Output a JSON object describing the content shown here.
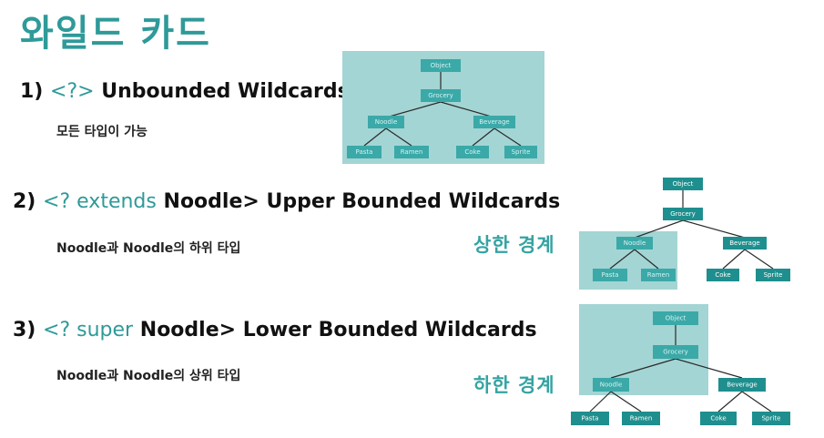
{
  "page": {
    "title": "와일드 카드"
  },
  "sections": [
    {
      "number": "1)",
      "type_param": "<?>",
      "rest": "Unbounded Wildcards",
      "description": "모든 타입이 가능"
    },
    {
      "number": "2)",
      "type_prefix": "<? extends",
      "type_bound": "Noodle>",
      "rest": "Upper Bounded Wildcards",
      "description": "Noodle과 Noodle의 하위 타입",
      "bound_label": "상한 경계"
    },
    {
      "number": "3)",
      "type_prefix": "<? super",
      "type_bound": "Noodle>",
      "rest": "Lower Bounded Wildcards",
      "description": "Noodle과 Noodle의 상위 타입",
      "bound_label": "하한 경계"
    }
  ],
  "hierarchy": {
    "root": "Object",
    "level1": "Grocery",
    "level2": [
      "Noodle",
      "Beverage"
    ],
    "noodle_children": [
      "Pasta",
      "Ramen"
    ],
    "beverage_children": [
      "Coke",
      "Sprite"
    ]
  },
  "colors": {
    "accent": "#2e9a99",
    "node": "#1e8f8e",
    "highlight_bg": "#a3d5d4"
  }
}
